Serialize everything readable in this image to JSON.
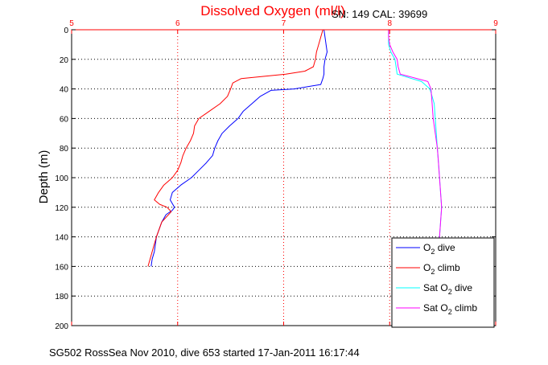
{
  "chart_data": {
    "type": "line",
    "title": "Dissolved Oxygen (ml/l)",
    "subtitle": "SN: 149  CAL: 39699",
    "ylabel": "Depth (m)",
    "footer": "SG502 RossSea Nov 2010, dive 653 started 17-Jan-2011 16:17:44",
    "xlim": [
      5,
      9
    ],
    "ylim": [
      0,
      200
    ],
    "y_reversed": true,
    "grid": true,
    "x_ticks": [
      "5",
      "6",
      "7",
      "8",
      "9"
    ],
    "y_ticks": [
      "0",
      "20",
      "40",
      "60",
      "80",
      "100",
      "120",
      "140",
      "160",
      "180",
      "200"
    ],
    "legend_position": "bottom-right",
    "series": [
      {
        "name": "O2 dive",
        "color": "#0000ff",
        "x": [
          7.38,
          7.39,
          7.4,
          7.41,
          7.39,
          7.38,
          7.38,
          7.37,
          7.35,
          7.1,
          6.88,
          6.78,
          6.7,
          6.62,
          6.57,
          6.49,
          6.42,
          6.38,
          6.35,
          6.33,
          6.27,
          6.2,
          6.13,
          6.03,
          5.95,
          5.93,
          5.97,
          5.95,
          5.89,
          5.85,
          5.8,
          5.78,
          5.76,
          5.75
        ],
        "y": [
          0,
          5,
          10,
          15,
          20,
          25,
          30,
          33,
          37,
          40,
          41,
          45,
          50,
          55,
          60,
          65,
          70,
          75,
          80,
          85,
          90,
          95,
          100,
          105,
          110,
          115,
          120,
          122,
          125,
          130,
          140,
          150,
          155,
          160
        ]
      },
      {
        "name": "O2 climb",
        "color": "#ff0000",
        "x": [
          7.37,
          7.35,
          7.33,
          7.31,
          7.3,
          7.28,
          7.2,
          7.02,
          6.6,
          6.52,
          6.5,
          6.47,
          6.4,
          6.3,
          6.2,
          6.16,
          6.15,
          6.12,
          6.08,
          6.05,
          6.03,
          6.0,
          5.95,
          5.87,
          5.82,
          5.78,
          5.83,
          5.9,
          5.94,
          5.85,
          5.8,
          5.76,
          5.74,
          5.72
        ],
        "y": [
          0,
          5,
          10,
          15,
          20,
          25,
          28,
          30,
          33,
          36,
          40,
          45,
          50,
          55,
          60,
          65,
          70,
          75,
          80,
          85,
          90,
          95,
          100,
          105,
          110,
          115,
          118,
          120,
          123,
          130,
          140,
          150,
          155,
          160
        ]
      },
      {
        "name": "Sat O2 dive",
        "color": "#00ffff",
        "x": [
          7.99,
          7.99,
          7.99,
          8.01,
          8.05,
          8.06,
          8.07,
          8.3,
          8.38,
          8.42,
          8.43,
          8.44,
          8.45,
          8.46,
          8.47,
          8.48,
          8.49,
          8.48,
          8.47,
          8.46
        ],
        "y": [
          0,
          5,
          10,
          15,
          20,
          25,
          30,
          35,
          40,
          50,
          60,
          70,
          80,
          90,
          100,
          110,
          120,
          130,
          140,
          145
        ]
      },
      {
        "name": "Sat O2 climb",
        "color": "#ff00ff",
        "x": [
          7.99,
          7.99,
          8.0,
          8.03,
          8.07,
          8.08,
          8.1,
          8.36,
          8.39,
          8.4,
          8.41,
          8.43,
          8.45,
          8.46,
          8.47,
          8.48,
          8.49,
          8.48,
          8.47,
          8.46
        ],
        "y": [
          0,
          5,
          10,
          15,
          20,
          25,
          30,
          35,
          40,
          50,
          60,
          70,
          80,
          90,
          100,
          110,
          120,
          130,
          140,
          145
        ]
      }
    ]
  },
  "legend": {
    "items": [
      {
        "prefix": "O",
        "sub": "2",
        "suffix": " dive",
        "color": "#0000ff"
      },
      {
        "prefix": "O",
        "sub": "2",
        "suffix": " climb",
        "color": "#ff0000"
      },
      {
        "prefix": "Sat O",
        "sub": "2",
        "suffix": " dive",
        "color": "#00ffff"
      },
      {
        "prefix": "Sat O",
        "sub": "2",
        "suffix": " climb",
        "color": "#ff00ff"
      }
    ]
  },
  "colors": {
    "x_axis": "#ff0000",
    "y_axis": "#000000",
    "grid_x": "#ff0000",
    "grid_y": "#000000"
  }
}
